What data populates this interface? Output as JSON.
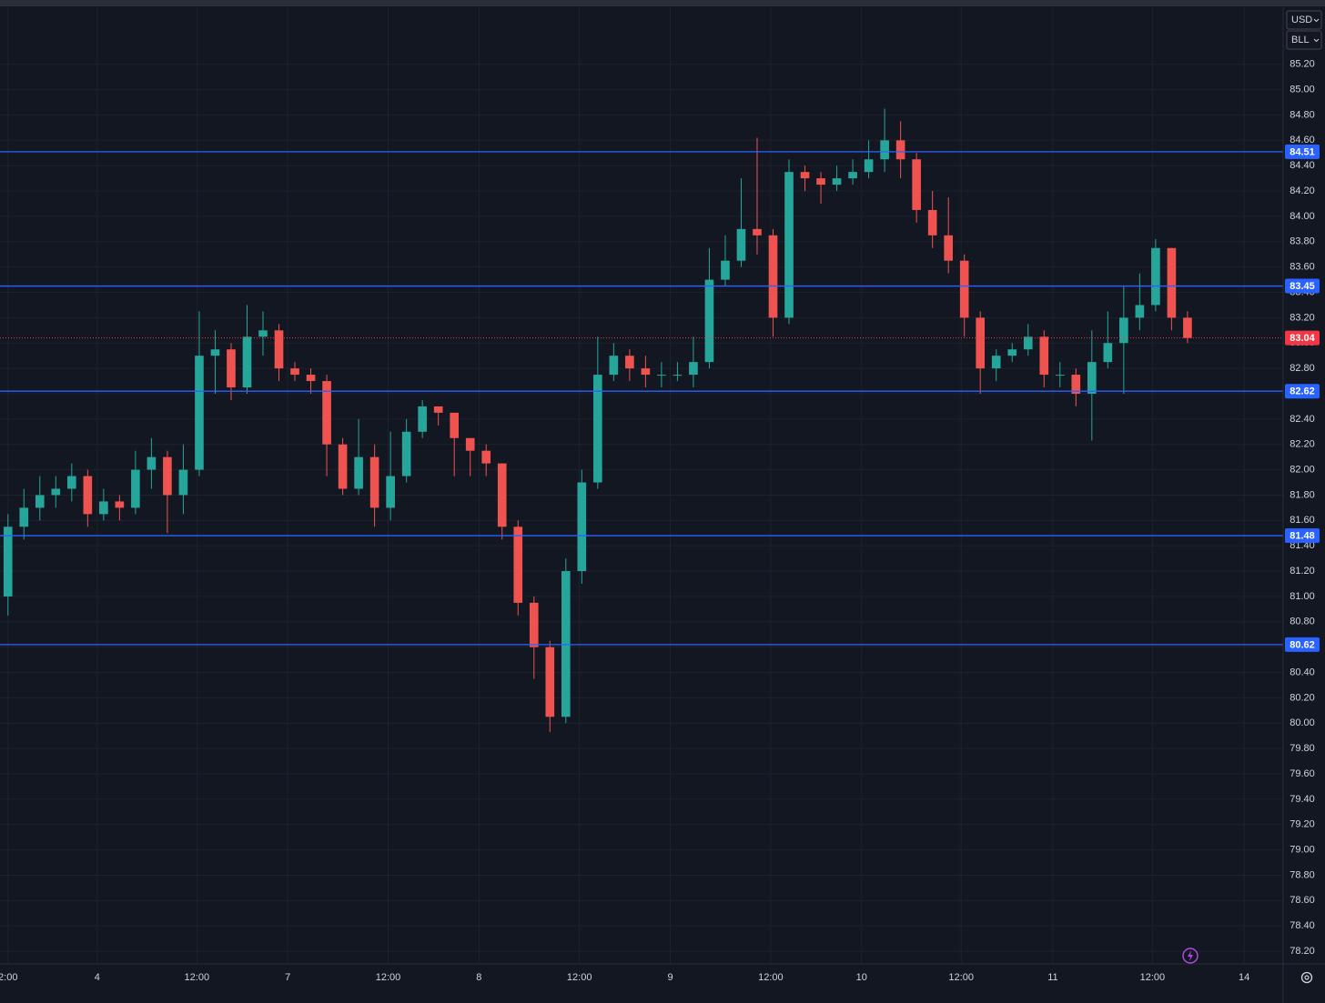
{
  "chart_data": {
    "type": "candlestick",
    "currency": "USD",
    "unit": "BLL",
    "up_color": "#26a69a",
    "down_color": "#ef5350",
    "line_color": "#2962ff",
    "last_price_color": "#f23645",
    "grid": true,
    "x": [
      1,
      3,
      5,
      7,
      9,
      11,
      13,
      15,
      17,
      19,
      21,
      23,
      25,
      27,
      29,
      31,
      33,
      35,
      37,
      39,
      41,
      43,
      45,
      47,
      49,
      51,
      53,
      55,
      57,
      59,
      61,
      63,
      65,
      67,
      69,
      71,
      73,
      75,
      77,
      79,
      81,
      83,
      85,
      87,
      89,
      91,
      93,
      95,
      97,
      99,
      101,
      103,
      105,
      107,
      109,
      111,
      113,
      115,
      117,
      119,
      121,
      123,
      125,
      127,
      129,
      131,
      133,
      135,
      137,
      139,
      141,
      143,
      145,
      147,
      149
    ],
    "open": [
      81.0,
      81.55,
      81.7,
      81.8,
      81.85,
      81.95,
      81.65,
      81.75,
      81.7,
      82.0,
      82.1,
      81.8,
      82.0,
      82.9,
      82.95,
      82.65,
      83.05,
      83.1,
      82.8,
      82.75,
      82.7,
      82.2,
      81.85,
      82.1,
      81.7,
      81.95,
      82.3,
      82.5,
      82.45,
      82.25,
      82.15,
      82.05,
      81.55,
      80.95,
      80.6,
      80.05,
      81.2,
      81.9,
      82.75,
      82.9,
      82.8,
      82.75,
      82.75,
      82.75,
      82.85,
      83.5,
      83.65,
      83.9,
      83.85,
      83.2,
      84.35,
      84.3,
      84.25,
      84.3,
      84.35,
      84.45,
      84.6,
      84.45,
      84.05,
      83.85,
      83.65,
      83.2,
      82.8,
      82.9,
      82.95,
      83.05,
      82.75,
      82.75,
      82.6,
      82.85,
      83.0,
      83.2,
      83.3,
      83.75,
      83.2
    ],
    "high": [
      81.65,
      81.85,
      81.95,
      81.95,
      82.05,
      82.0,
      81.85,
      81.8,
      82.15,
      82.25,
      82.15,
      82.2,
      83.25,
      83.1,
      83.0,
      83.3,
      83.25,
      83.15,
      82.85,
      82.8,
      82.75,
      82.25,
      82.4,
      82.2,
      82.3,
      82.4,
      82.55,
      82.5,
      82.45,
      82.25,
      82.2,
      82.05,
      81.6,
      81.0,
      80.65,
      81.3,
      82.0,
      83.05,
      83.0,
      82.95,
      82.9,
      82.85,
      82.85,
      83.05,
      83.75,
      83.85,
      84.3,
      84.62,
      83.9,
      84.45,
      84.4,
      84.35,
      84.4,
      84.45,
      84.6,
      84.85,
      84.75,
      84.5,
      84.2,
      84.15,
      83.7,
      83.25,
      82.95,
      83.0,
      83.15,
      83.1,
      82.85,
      82.8,
      83.1,
      83.25,
      83.45,
      83.55,
      83.82,
      83.75,
      83.25
    ],
    "low": [
      80.85,
      81.45,
      81.6,
      81.7,
      81.75,
      81.55,
      81.6,
      81.6,
      81.65,
      81.85,
      81.5,
      81.65,
      81.95,
      82.6,
      82.55,
      82.6,
      82.9,
      82.7,
      82.7,
      82.6,
      81.95,
      81.8,
      81.8,
      81.55,
      81.6,
      81.9,
      82.25,
      82.35,
      81.95,
      81.95,
      81.95,
      81.45,
      80.85,
      80.35,
      79.93,
      80.0,
      81.1,
      81.85,
      82.7,
      82.7,
      82.65,
      82.65,
      82.7,
      82.65,
      82.8,
      83.45,
      83.6,
      83.7,
      83.05,
      83.15,
      84.2,
      84.1,
      84.2,
      84.25,
      84.3,
      84.35,
      84.3,
      83.95,
      83.75,
      83.55,
      83.05,
      82.6,
      82.7,
      82.85,
      82.9,
      82.65,
      82.65,
      82.5,
      82.23,
      82.8,
      82.6,
      83.1,
      83.25,
      83.1,
      83.0
    ],
    "close": [
      81.55,
      81.7,
      81.8,
      81.85,
      81.95,
      81.65,
      81.75,
      81.7,
      82.0,
      82.1,
      81.8,
      82.0,
      82.9,
      82.95,
      82.65,
      83.05,
      83.1,
      82.8,
      82.75,
      82.7,
      82.2,
      81.85,
      82.1,
      81.7,
      81.95,
      82.3,
      82.5,
      82.45,
      82.25,
      82.15,
      82.05,
      81.55,
      80.95,
      80.6,
      80.05,
      81.2,
      81.9,
      82.75,
      82.9,
      82.8,
      82.75,
      82.75,
      82.75,
      82.85,
      83.5,
      83.65,
      83.9,
      83.85,
      83.2,
      84.35,
      84.3,
      84.25,
      84.3,
      84.35,
      84.45,
      84.6,
      84.45,
      84.05,
      83.85,
      83.65,
      83.2,
      82.8,
      82.9,
      82.95,
      83.05,
      82.75,
      82.75,
      82.6,
      82.85,
      83.0,
      83.2,
      83.3,
      83.75,
      83.2,
      83.04
    ],
    "horizontal_lines": [
      84.51,
      83.45,
      82.62,
      81.48,
      80.62
    ],
    "last_price": 83.04,
    "xlim": [
      0,
      161
    ],
    "ylim": [
      78.1,
      85.65
    ],
    "xticks": [
      {
        "value": 1,
        "label": "2:00"
      },
      {
        "value": 12.2,
        "label": "4"
      },
      {
        "value": 24.7,
        "label": "12:00"
      },
      {
        "value": 36.1,
        "label": "7"
      },
      {
        "value": 48.7,
        "label": "12:00"
      },
      {
        "value": 60.1,
        "label": "8"
      },
      {
        "value": 72.7,
        "label": "12:00"
      },
      {
        "value": 84.1,
        "label": "9"
      },
      {
        "value": 96.7,
        "label": "12:00"
      },
      {
        "value": 108.1,
        "label": "10"
      },
      {
        "value": 120.6,
        "label": "12:00"
      },
      {
        "value": 132.1,
        "label": "11"
      },
      {
        "value": 144.6,
        "label": "12:00"
      },
      {
        "value": 156.1,
        "label": "14"
      }
    ],
    "yticks": [
      {
        "value": 78.2,
        "label": "78.20"
      },
      {
        "value": 78.4,
        "label": "78.40"
      },
      {
        "value": 78.6,
        "label": "78.60"
      },
      {
        "value": 78.8,
        "label": "78.80"
      },
      {
        "value": 79.0,
        "label": "79.00"
      },
      {
        "value": 79.2,
        "label": "79.20"
      },
      {
        "value": 79.4,
        "label": "79.40"
      },
      {
        "value": 79.6,
        "label": "79.60"
      },
      {
        "value": 79.8,
        "label": "79.80"
      },
      {
        "value": 80.0,
        "label": "80.00"
      },
      {
        "value": 80.2,
        "label": "80.20"
      },
      {
        "value": 80.4,
        "label": "80.40"
      },
      {
        "value": 80.6,
        "label": "80.60"
      },
      {
        "value": 80.8,
        "label": "80.80"
      },
      {
        "value": 81.0,
        "label": "81.00"
      },
      {
        "value": 81.2,
        "label": "81.20"
      },
      {
        "value": 81.4,
        "label": "81.40"
      },
      {
        "value": 81.6,
        "label": "81.60"
      },
      {
        "value": 81.8,
        "label": "81.80"
      },
      {
        "value": 82.0,
        "label": "82.00"
      },
      {
        "value": 82.2,
        "label": "82.20"
      },
      {
        "value": 82.4,
        "label": "82.40"
      },
      {
        "value": 82.6,
        "label": "82.60"
      },
      {
        "value": 82.8,
        "label": "82.80"
      },
      {
        "value": 83.0,
        "label": "83.00"
      },
      {
        "value": 83.2,
        "label": "83.20"
      },
      {
        "value": 83.4,
        "label": "83.40"
      },
      {
        "value": 83.6,
        "label": "83.60"
      },
      {
        "value": 83.8,
        "label": "83.80"
      },
      {
        "value": 84.0,
        "label": "84.00"
      },
      {
        "value": 84.2,
        "label": "84.20"
      },
      {
        "value": 84.4,
        "label": "84.40"
      },
      {
        "value": 84.6,
        "label": "84.60"
      },
      {
        "value": 84.8,
        "label": "84.80"
      },
      {
        "value": 85.0,
        "label": "85.00"
      },
      {
        "value": 85.2,
        "label": "85.20"
      }
    ]
  }
}
